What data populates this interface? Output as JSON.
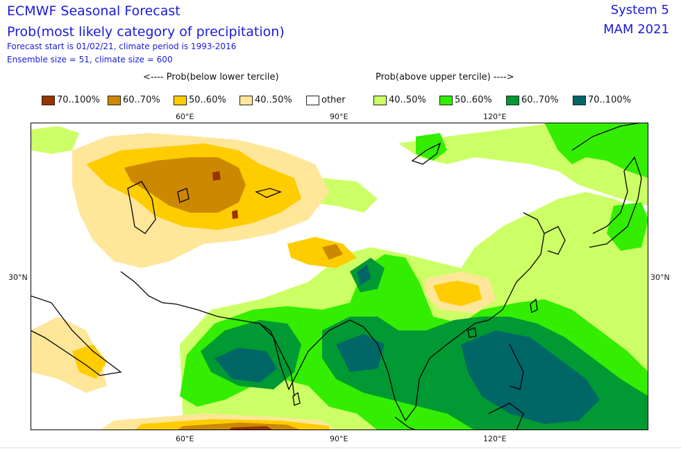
{
  "header": {
    "title": "ECMWF Seasonal Forecast",
    "subtitle": "Prob(most likely category of precipitation)",
    "info1": "Forecast start is 01/02/21, climate period is 1993-2016",
    "info2": "Ensemble size = 51, climate size = 600",
    "system": "System 5",
    "season": "MAM 2021"
  },
  "captions": {
    "below": "<---- Prob(below lower tercile)",
    "above": "Prob(above upper tercile) ---->"
  },
  "legend": [
    {
      "label": "70..100%",
      "color": "#993300"
    },
    {
      "label": "60..70%",
      "color": "#cc8800"
    },
    {
      "label": "50..60%",
      "color": "#ffcc00"
    },
    {
      "label": "40..50%",
      "color": "#ffe699"
    },
    {
      "label": "other",
      "color": "#ffffff"
    },
    {
      "label": "40..50%",
      "color": "#ccff66"
    },
    {
      "label": "50..60%",
      "color": "#33ee00"
    },
    {
      "label": "60..70%",
      "color": "#009933"
    },
    {
      "label": "70..100%",
      "color": "#006666"
    }
  ],
  "axes": {
    "lon_top": [
      "60°E",
      "90°E",
      "120°E"
    ],
    "lon_bottom": [
      "60°E",
      "90°E",
      "120°E"
    ],
    "lat_left": "30°N",
    "lat_right": "30°N"
  }
}
